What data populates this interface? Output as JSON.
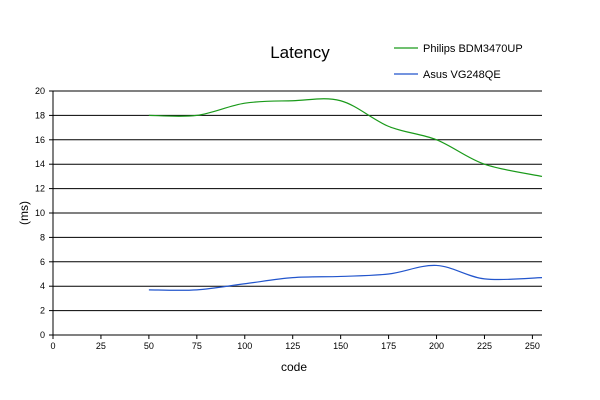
{
  "chart_data": {
    "type": "line",
    "title": "Latency",
    "xlabel": "code",
    "ylabel": "(ms)",
    "xlim": [
      0,
      255
    ],
    "ylim": [
      0,
      20
    ],
    "x_ticks": [
      0,
      25,
      50,
      75,
      100,
      125,
      150,
      175,
      200,
      225,
      250
    ],
    "y_ticks": [
      0,
      2,
      4,
      6,
      8,
      10,
      12,
      14,
      16,
      18,
      20
    ],
    "grid": "horizontal",
    "legend_position": "top-right",
    "series": [
      {
        "name": "Philips BDM3470UP",
        "color": "#1a9a1a",
        "x": [
          50,
          75,
          100,
          125,
          150,
          175,
          200,
          225,
          255
        ],
        "y": [
          18.0,
          18.0,
          19.0,
          19.2,
          19.2,
          17.1,
          16.0,
          14.0,
          13.0
        ]
      },
      {
        "name": "Asus VG248QE",
        "color": "#2255cc",
        "x": [
          50,
          75,
          100,
          125,
          150,
          175,
          200,
          225,
          255
        ],
        "y": [
          3.7,
          3.7,
          4.2,
          4.7,
          4.8,
          5.0,
          5.7,
          4.6,
          4.7
        ]
      }
    ]
  }
}
